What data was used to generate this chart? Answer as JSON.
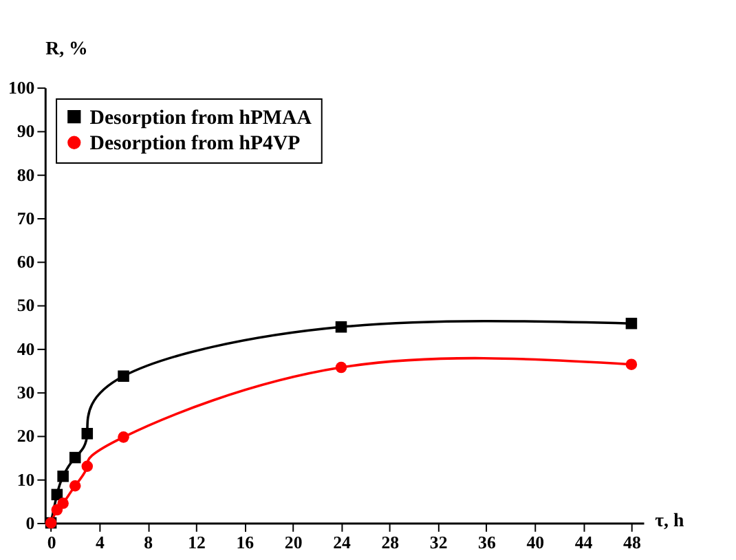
{
  "chart_data": {
    "type": "line",
    "xlabel": "τ, h",
    "ylabel": "R, %",
    "x": [
      0,
      0.5,
      1,
      2,
      3,
      6,
      24,
      48
    ],
    "series": [
      {
        "name": "Desorption from hPMAA",
        "color": "#000000",
        "marker": "square",
        "values": [
          0,
          6.5,
          10.7,
          15,
          20.5,
          33.7,
          45,
          45.8
        ]
      },
      {
        "name": "Desorption from hP4VP",
        "color": "#ff0000",
        "marker": "circle",
        "values": [
          0,
          3,
          4.5,
          8.5,
          13,
          19.7,
          35.7,
          36.4
        ]
      }
    ],
    "xlim": [
      -0.5,
      49
    ],
    "xticks": [
      0,
      4,
      8,
      12,
      16,
      20,
      24,
      28,
      32,
      36,
      40,
      44,
      48
    ],
    "ylim": [
      0,
      100
    ],
    "yticks": [
      0,
      10,
      20,
      30,
      40,
      50,
      60,
      70,
      80,
      90,
      100
    ],
    "grid": false,
    "legend": "top left"
  }
}
